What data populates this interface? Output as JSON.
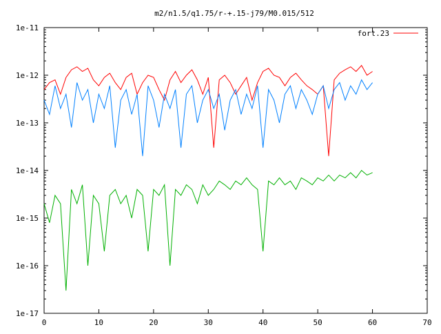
{
  "chart_data": {
    "type": "line",
    "title": "m2/n1.5/q1.75/r-+.15-j79/M0.015/512",
    "xlabel": "",
    "ylabel": "",
    "xlim": [
      0,
      70
    ],
    "ylim": [
      1e-17,
      1e-11
    ],
    "yscale": "log",
    "grid": false,
    "legend_position": "top-right",
    "x_ticks": [
      0,
      10,
      20,
      30,
      40,
      50,
      60,
      70
    ],
    "x_tick_labels": [
      "0",
      "10",
      "20",
      "30",
      "40",
      "50",
      "60",
      "70"
    ],
    "y_ticks": [
      1e-17,
      1e-16,
      1e-15,
      1e-14,
      1e-13,
      1e-12,
      1e-11
    ],
    "y_tick_labels": [
      "1e-17",
      "1e-16",
      "1e-15",
      "1e-14",
      "1e-13",
      "1e-12",
      "1e-11"
    ],
    "series": [
      {
        "name": "fort.23",
        "color": "#ff0000",
        "x": [
          0,
          1,
          2,
          3,
          4,
          5,
          6,
          7,
          8,
          9,
          10,
          11,
          12,
          13,
          14,
          15,
          16,
          17,
          18,
          19,
          20,
          21,
          22,
          23,
          24,
          25,
          26,
          27,
          28,
          29,
          30,
          31,
          32,
          33,
          34,
          35,
          36,
          37,
          38,
          39,
          40,
          41,
          42,
          43,
          44,
          45,
          46,
          47,
          48,
          49,
          50,
          51,
          52,
          53,
          54,
          55,
          56,
          57,
          58,
          59,
          60
        ],
        "values": [
          5e-13,
          7e-13,
          8e-13,
          4e-13,
          9e-13,
          1.3e-12,
          1.5e-12,
          1.2e-12,
          1.4e-12,
          8e-13,
          6e-13,
          9e-13,
          1.1e-12,
          7e-13,
          5e-13,
          9e-13,
          1.1e-12,
          4e-13,
          7e-13,
          1e-12,
          9e-13,
          5e-13,
          3e-13,
          8e-13,
          1.2e-12,
          7e-13,
          1e-12,
          1.3e-12,
          8e-13,
          4e-13,
          9e-13,
          3e-14,
          8e-13,
          1e-12,
          7e-13,
          4e-13,
          6e-13,
          9e-13,
          3e-13,
          7e-13,
          1.2e-12,
          1.4e-12,
          1e-12,
          9e-13,
          6e-13,
          9e-13,
          1.1e-12,
          8e-13,
          6e-13,
          5e-13,
          4e-13,
          6e-13,
          2e-14,
          8e-13,
          1.1e-12,
          1.3e-12,
          1.5e-12,
          1.2e-12,
          1.6e-12,
          1e-12,
          1.2e-12
        ]
      },
      {
        "color": "#0080ff",
        "x": [
          0,
          1,
          2,
          3,
          4,
          5,
          6,
          7,
          8,
          9,
          10,
          11,
          12,
          13,
          14,
          15,
          16,
          17,
          18,
          19,
          20,
          21,
          22,
          23,
          24,
          25,
          26,
          27,
          28,
          29,
          30,
          31,
          32,
          33,
          34,
          35,
          36,
          37,
          38,
          39,
          40,
          41,
          42,
          43,
          44,
          45,
          46,
          47,
          48,
          49,
          50,
          51,
          52,
          53,
          54,
          55,
          56,
          57,
          58,
          59,
          60
        ],
        "values": [
          3e-13,
          1.5e-13,
          6e-13,
          2e-13,
          4e-13,
          8e-14,
          7e-13,
          3e-13,
          5e-13,
          1e-13,
          4e-13,
          2e-13,
          6e-13,
          3e-14,
          3e-13,
          5e-13,
          1.5e-13,
          4e-13,
          2e-14,
          6e-13,
          3e-13,
          8e-14,
          4e-13,
          2e-13,
          5e-13,
          3e-14,
          4e-13,
          6e-13,
          1e-13,
          3e-13,
          5e-13,
          2e-13,
          4e-13,
          7e-14,
          3e-13,
          5e-13,
          1.5e-13,
          4e-13,
          2e-13,
          6e-13,
          3e-14,
          5e-13,
          3e-13,
          1e-13,
          4e-13,
          6e-13,
          2e-13,
          5e-13,
          3e-13,
          1.5e-13,
          4e-13,
          6e-13,
          2e-13,
          5e-13,
          7e-13,
          3e-13,
          6e-13,
          4e-13,
          8e-13,
          5e-13,
          7e-13
        ]
      },
      {
        "color": "#00b000",
        "x": [
          0,
          1,
          2,
          3,
          4,
          5,
          6,
          7,
          8,
          9,
          10,
          11,
          12,
          13,
          14,
          15,
          16,
          17,
          18,
          19,
          20,
          21,
          22,
          23,
          24,
          25,
          26,
          27,
          28,
          29,
          30,
          31,
          32,
          33,
          34,
          35,
          36,
          37,
          38,
          39,
          40,
          41,
          42,
          43,
          44,
          45,
          46,
          47,
          48,
          49,
          50,
          51,
          52,
          53,
          54,
          55,
          56,
          57,
          58,
          59,
          60
        ],
        "values": [
          2e-15,
          8e-16,
          3e-15,
          2e-15,
          3e-17,
          4e-15,
          2e-15,
          5e-15,
          1e-16,
          3e-15,
          2e-15,
          2e-16,
          3e-15,
          4e-15,
          2e-15,
          3e-15,
          1e-15,
          4e-15,
          3e-15,
          2e-16,
          4e-15,
          3e-15,
          5e-15,
          1e-16,
          4e-15,
          3e-15,
          5e-15,
          4e-15,
          2e-15,
          5e-15,
          3e-15,
          4e-15,
          6e-15,
          5e-15,
          4e-15,
          6e-15,
          5e-15,
          7e-15,
          5e-15,
          4e-15,
          2e-16,
          6e-15,
          5e-15,
          7e-15,
          5e-15,
          6e-15,
          4e-15,
          7e-15,
          6e-15,
          5e-15,
          7e-15,
          6e-15,
          8e-15,
          6e-15,
          8e-15,
          7e-15,
          9e-15,
          7e-15,
          1e-14,
          8e-15,
          9e-15
        ]
      }
    ]
  }
}
